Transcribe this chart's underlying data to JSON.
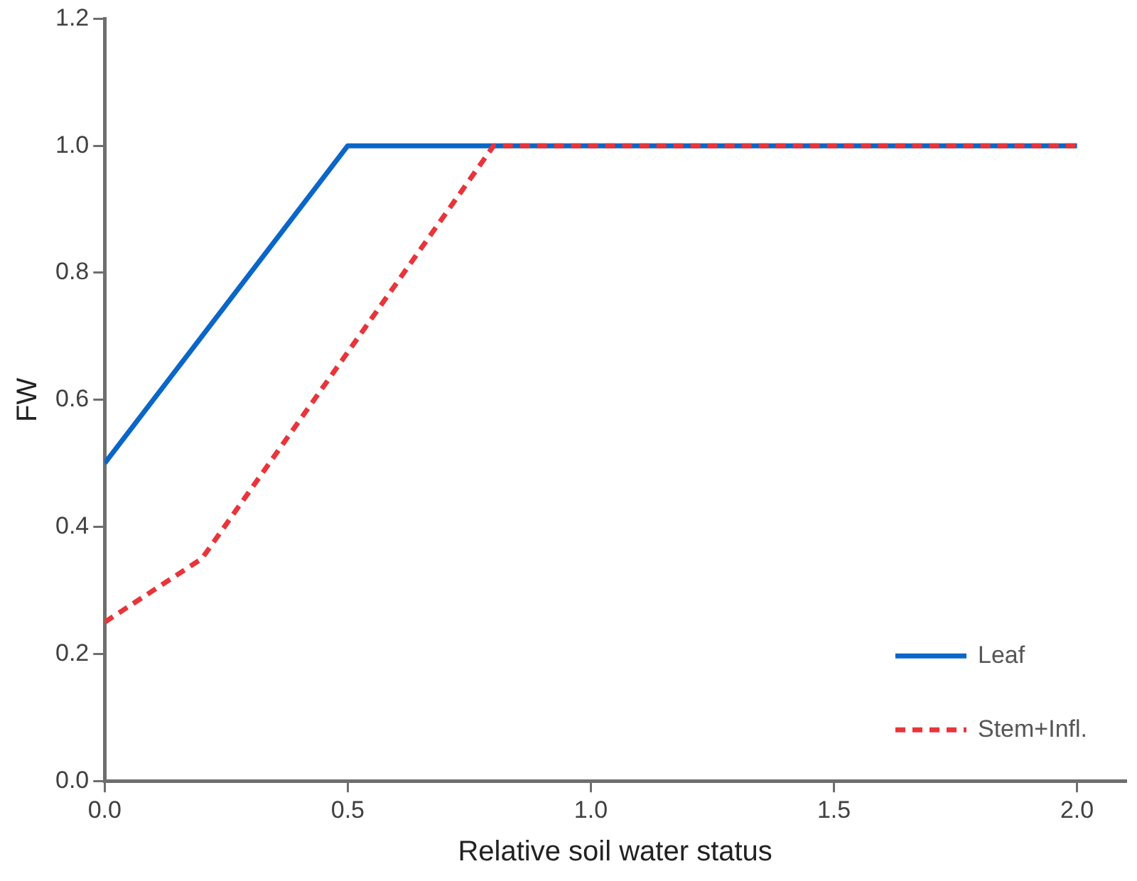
{
  "chart_data": {
    "type": "line",
    "xlabel": "Relative soil water status",
    "ylabel": "FW",
    "xlim": [
      0,
      2.1
    ],
    "xticks": [
      {
        "value": 0,
        "label": "0.0"
      },
      {
        "value": 0.5,
        "label": "0.5"
      },
      {
        "value": 1,
        "label": "1.0"
      },
      {
        "value": 1.5,
        "label": "1.5"
      },
      {
        "value": 2,
        "label": "2.0"
      }
    ],
    "ylim": [
      0,
      1.2
    ],
    "yticks": [
      {
        "value": 0,
        "label": "0.0"
      },
      {
        "value": 0.2,
        "label": "0.2"
      },
      {
        "value": 0.4,
        "label": "0.4"
      },
      {
        "value": 0.6,
        "label": "0.6"
      },
      {
        "value": 0.8,
        "label": "0.8"
      },
      {
        "value": 1,
        "label": "1.0"
      },
      {
        "value": 1.2,
        "label": "1.2"
      }
    ],
    "grid": false,
    "legend": "bottom right",
    "marker": "none",
    "series": [
      {
        "name": "Leaf",
        "color": "#0a66c8",
        "x": [
          0,
          0.5,
          2
        ],
        "values": [
          0.5,
          1,
          1
        ],
        "line_style": "solid"
      },
      {
        "name": "Stem+Infl.",
        "color": "#e8343a",
        "x": [
          0,
          0.2,
          0.8,
          2
        ],
        "values": [
          0.25,
          0.35,
          1,
          1
        ],
        "line_style": "dashed"
      }
    ]
  }
}
